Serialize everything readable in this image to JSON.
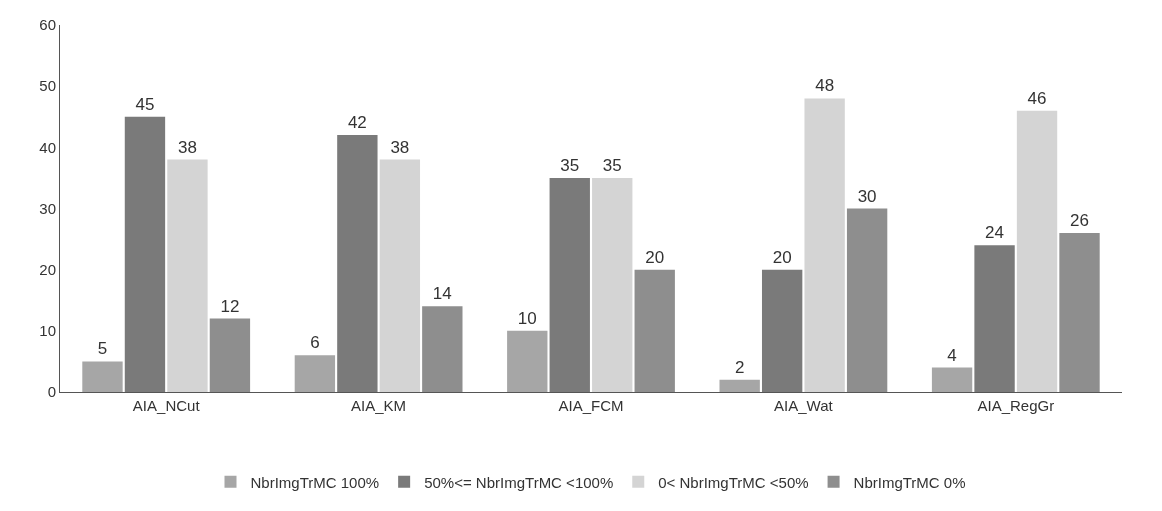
{
  "chart_data": {
    "type": "bar",
    "categories": [
      "AIA_NCut",
      "AIA_KM",
      "AIA_FCM",
      "AIA_Wat",
      "AIA_RegGr"
    ],
    "series": [
      {
        "name": "NbrImgTrMC 100%",
        "color": "#a6a6a6",
        "values": [
          5,
          6,
          10,
          2,
          4
        ]
      },
      {
        "name": "50%<= NbrImgTrMC <100%",
        "color": "#7a7a7a",
        "values": [
          45,
          42,
          35,
          20,
          24
        ]
      },
      {
        "name": "0< NbrImgTrMC <50%",
        "color": "#d4d4d4",
        "values": [
          38,
          38,
          35,
          48,
          46
        ]
      },
      {
        "name": "NbrImgTrMC 0%",
        "color": "#8e8e8e",
        "values": [
          12,
          14,
          20,
          30,
          26
        ]
      }
    ],
    "ylim": [
      0,
      60
    ],
    "yticks": [
      0,
      10,
      20,
      30,
      40,
      50,
      60
    ],
    "data_labels": true,
    "grid": false,
    "legend": "bottom"
  }
}
